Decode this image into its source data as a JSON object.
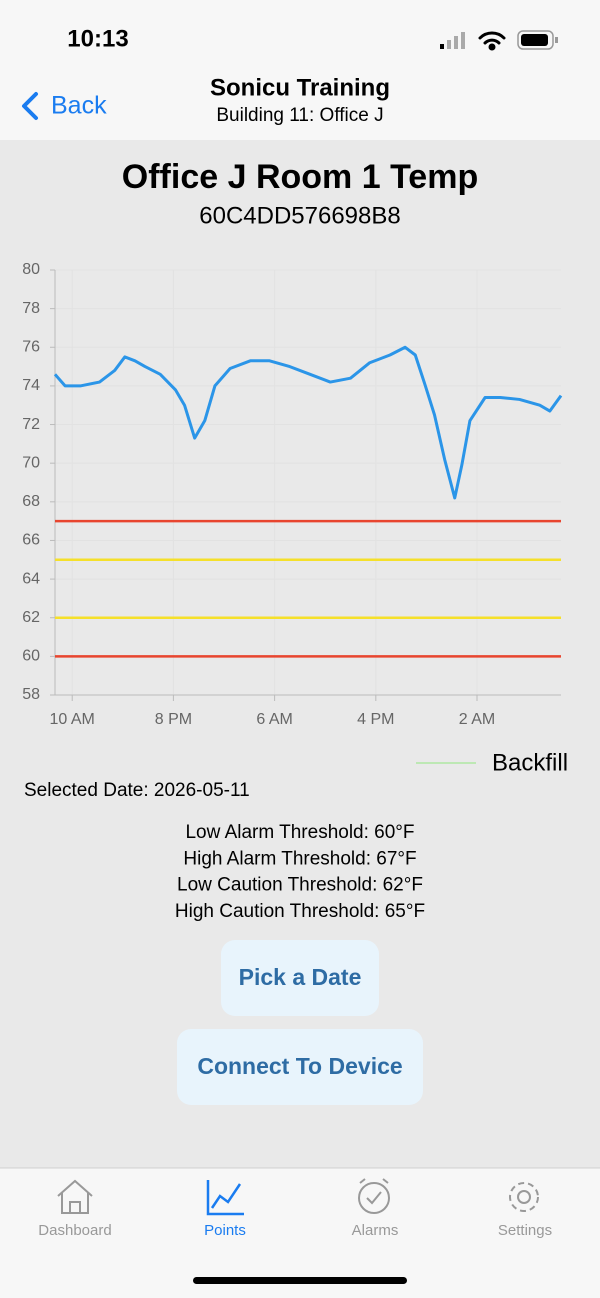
{
  "status_bar": {
    "time": "10:13"
  },
  "nav": {
    "back": "Back",
    "title": "Sonicu Training",
    "subtitle": "Building 11: Office J"
  },
  "chart_data": {
    "type": "line",
    "title": "Office J Room 1 Temp",
    "subtitle": "60C4DD576698B8",
    "x": [
      0,
      1.0,
      2.5,
      4.4,
      5.9,
      6.9,
      7.9,
      8.9,
      10.4,
      11.9,
      12.8,
      13.8,
      14.8,
      15.8,
      17.3,
      19.3,
      21.2,
      23.2,
      25.2,
      27.2,
      29.2,
      31.1,
      33.1,
      34.6,
      35.6,
      36.6,
      37.5,
      38.5,
      39.5,
      40.2,
      41.0,
      42.5,
      44.0,
      45.9,
      47.9,
      48.9,
      50
    ],
    "series": [
      {
        "color": "#2b95e8",
        "values": [
          74.6,
          74.0,
          74.0,
          74.2,
          74.8,
          75.5,
          75.3,
          75.0,
          74.6,
          73.8,
          73.0,
          71.3,
          72.2,
          74.0,
          74.9,
          75.3,
          75.3,
          75.0,
          74.6,
          74.2,
          74.4,
          75.2,
          75.6,
          76.0,
          75.6,
          74.0,
          72.5,
          70.2,
          68.2,
          69.9,
          72.2,
          73.4,
          73.4,
          73.3,
          73.0,
          72.7,
          73.5
        ]
      }
    ],
    "thresholds": [
      {
        "value": 67,
        "color": "#e8452f"
      },
      {
        "value": 65,
        "color": "#f5e02a"
      },
      {
        "value": 62,
        "color": "#f5e02a"
      },
      {
        "value": 60,
        "color": "#e8452f"
      }
    ],
    "legend": [
      {
        "name": "Backfill",
        "color": "#bde8b4"
      }
    ],
    "xlim": [
      0,
      50
    ],
    "xticks": [
      {
        "value": 1.7,
        "label": "10 AM"
      },
      {
        "value": 11.7,
        "label": "8 PM"
      },
      {
        "value": 21.7,
        "label": "6 AM"
      },
      {
        "value": 31.7,
        "label": "4 PM"
      },
      {
        "value": 41.7,
        "label": "2 AM"
      }
    ],
    "ylim": [
      58,
      80
    ],
    "yticks": [
      58,
      60,
      62,
      64,
      66,
      68,
      70,
      72,
      74,
      76,
      78,
      80
    ]
  },
  "info": {
    "selected_date": "Selected Date: 2026-05-11",
    "lines": [
      "Low Alarm Threshold: 60°F",
      "High Alarm Threshold: 67°F",
      "Low Caution Threshold: 62°F",
      "High Caution Threshold: 65°F"
    ]
  },
  "buttons": [
    "Pick a Date",
    "Connect To Device"
  ],
  "tabs": [
    "Dashboard",
    "Points",
    "Alarms",
    "Settings"
  ]
}
